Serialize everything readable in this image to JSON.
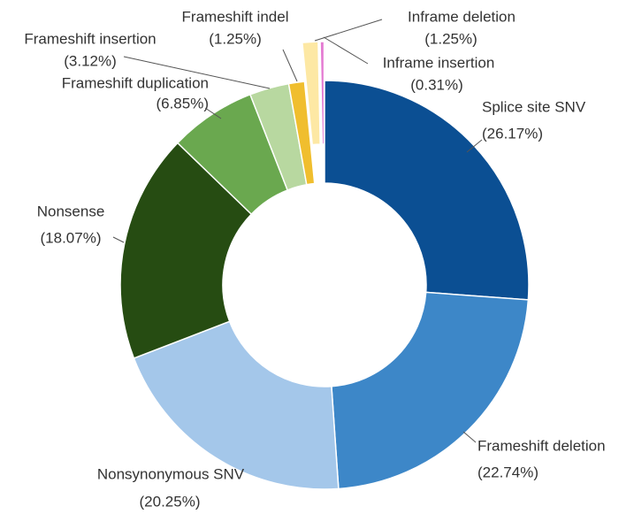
{
  "chart_data": {
    "type": "donut",
    "categories": [
      "Splice site SNV",
      "Frameshift deletion",
      "Nonsynonymous SNV",
      "Nonsense",
      "Frameshift duplication",
      "Frameshift insertion",
      "Frameshift indel",
      "Inframe deletion",
      "Inframe insertion"
    ],
    "values": [
      26.17,
      22.74,
      20.25,
      18.07,
      6.85,
      3.12,
      1.25,
      1.25,
      0.31
    ],
    "value_labels": [
      "(26.17%)",
      "(22.74%)",
      "(20.25%)",
      "(18.07%)",
      "(6.85%)",
      "(3.12%)",
      "(1.25%)",
      "(1.25%)",
      "(0.31%)"
    ],
    "colors": [
      "#0b4f93",
      "#3d87c8",
      "#a4c7ea",
      "#264c12",
      "#6aa84f",
      "#b8d8a0",
      "#f0be2e",
      "#fde8a4",
      "#e47bd2"
    ],
    "exploded": [
      false,
      false,
      false,
      false,
      false,
      false,
      false,
      true,
      true
    ]
  }
}
